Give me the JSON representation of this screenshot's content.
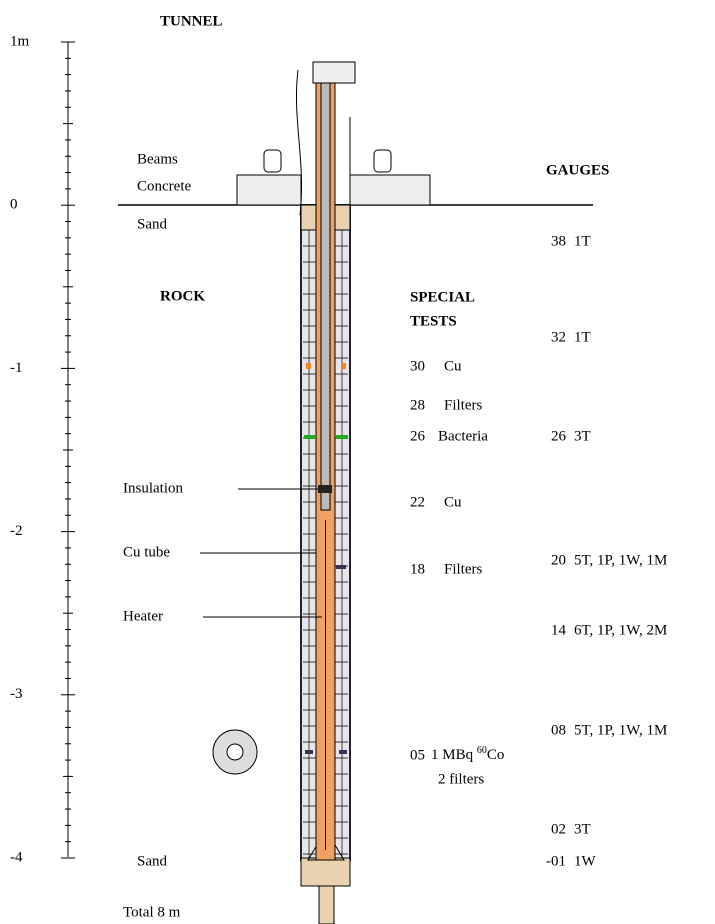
{
  "header": {
    "title": "TUNNEL"
  },
  "scale": {
    "labels": [
      "1m",
      "0",
      "-1",
      "-2",
      "-3",
      "-4"
    ]
  },
  "labels": {
    "beams": "Beams",
    "concrete": "Concrete",
    "sand_top": "Sand",
    "rock": "ROCK",
    "insulation": "Insulation",
    "cu_tube": "Cu tube",
    "heater": "Heater",
    "sand_bottom": "Sand",
    "total": "Total 8 m"
  },
  "special_tests": {
    "title_lines": [
      "SPECIAL",
      "TESTS"
    ],
    "rows": [
      {
        "number": "30",
        "label": "Cu"
      },
      {
        "number": "28",
        "label": "Filters"
      },
      {
        "number": "26",
        "label": "Bacteria"
      },
      {
        "number": "22",
        "label": "Cu"
      },
      {
        "number": "18",
        "label": "Filters"
      }
    ],
    "source": {
      "number": "05",
      "text": "1 MBq ",
      "isotope_mass": "60",
      "isotope": "Co",
      "line2": "2 filters"
    }
  },
  "gauges": {
    "title": "GAUGES",
    "rows": [
      {
        "number": "38",
        "label": "1T"
      },
      {
        "number": "32",
        "label": "1T"
      },
      {
        "number": "26",
        "label": "3T"
      },
      {
        "number": "20",
        "label": "5T, 1P, 1W, 1M"
      },
      {
        "number": "14",
        "label": "6T, 1P, 1W, 2M"
      },
      {
        "number": "08",
        "label": "5T, 1P, 1W, 1M"
      },
      {
        "number": "02",
        "label": "3T"
      },
      {
        "number": "-01",
        "label": "1W"
      }
    ]
  }
}
